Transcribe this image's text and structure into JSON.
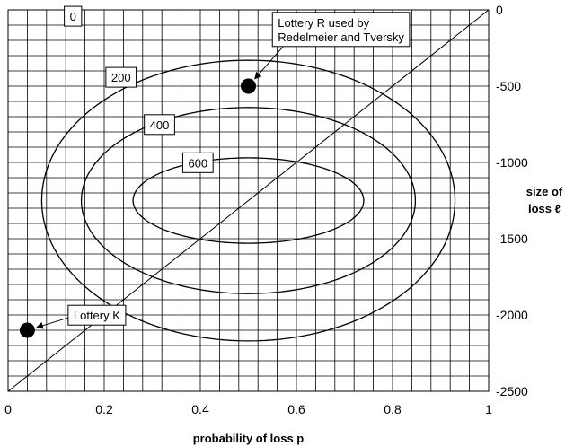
{
  "chart_data": {
    "type": "line",
    "xlabel": "probability of loss p",
    "ylabel": [
      "size of",
      "loss ℓ"
    ],
    "xlim": [
      0,
      1
    ],
    "ylim": [
      -2500,
      0
    ],
    "y_axis_side": "right",
    "x_ticks": [
      {
        "value": 0,
        "label": "0"
      },
      {
        "value": 0.2,
        "label": "0.2"
      },
      {
        "value": 0.4,
        "label": "0.4"
      },
      {
        "value": 0.6,
        "label": "0.6"
      },
      {
        "value": 0.8,
        "label": "0.8"
      },
      {
        "value": 1,
        "label": "1"
      }
    ],
    "y_ticks": [
      {
        "value": 0,
        "label": "0"
      },
      {
        "value": -500,
        "label": "-500"
      },
      {
        "value": -1000,
        "label": "-1000"
      },
      {
        "value": -1500,
        "label": "-1500"
      },
      {
        "value": -2000,
        "label": "-2000"
      },
      {
        "value": -2500,
        "label": "-2500"
      }
    ],
    "grid": {
      "x_step": 0.04,
      "y_step": 100
    },
    "diagonal": {
      "x": [
        0,
        1
      ],
      "y": [
        -2500,
        0
      ]
    },
    "contours": [
      {
        "name": "200",
        "center": [
          0.5,
          -1250
        ],
        "x_range": [
          0.07,
          0.93
        ],
        "y_range": [
          -2170,
          -330
        ]
      },
      {
        "name": "400",
        "center": [
          0.5,
          -1250
        ],
        "x_range": [
          0.155,
          0.85
        ],
        "y_range": [
          -1860,
          -640
        ]
      },
      {
        "name": "600",
        "center": [
          0.5,
          -1250
        ],
        "x_range": [
          0.26,
          0.74
        ],
        "y_range": [
          -1530,
          -970
        ]
      }
    ],
    "contour_labels": [
      {
        "text": "0",
        "x": 0.135,
        "y": -30
      },
      {
        "text": "200",
        "x": 0.235,
        "y": -430
      },
      {
        "text": "400",
        "x": 0.315,
        "y": -740
      },
      {
        "text": "600",
        "x": 0.395,
        "y": -990
      }
    ],
    "points": [
      {
        "name": "Lottery R",
        "x": 0.5,
        "y": -500,
        "label": [
          "Lottery R used by",
          "Redelmeier and  Tversky"
        ],
        "label_anchor": [
          0.55,
          -40
        ]
      },
      {
        "name": "Lottery K",
        "x": 0.04,
        "y": -2100,
        "label": [
          "Lottery K"
        ],
        "label_anchor": [
          0.125,
          -1960
        ]
      }
    ]
  }
}
